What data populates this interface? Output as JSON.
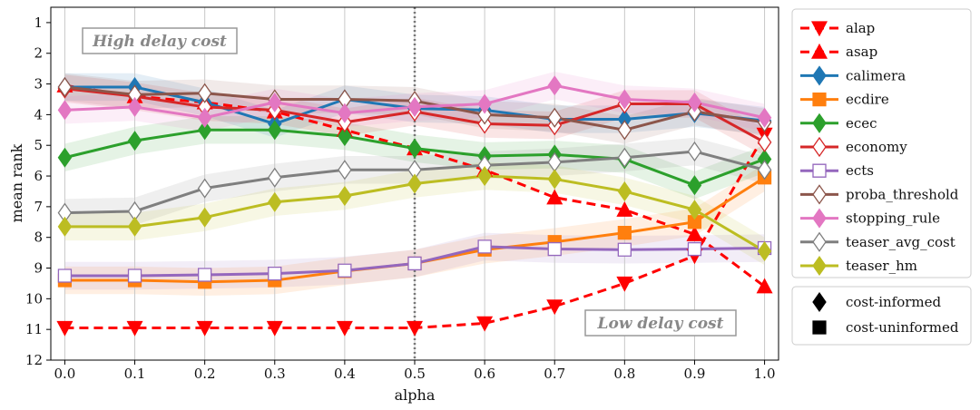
{
  "chart_data": {
    "type": "line",
    "xlabel": "alpha",
    "ylabel": "mean rank",
    "x": [
      0.0,
      0.1,
      0.2,
      0.3,
      0.4,
      0.5,
      0.6,
      0.7,
      0.8,
      0.9,
      1.0
    ],
    "x_ticks": [
      "0.0",
      "0.1",
      "0.2",
      "0.3",
      "0.4",
      "0.5",
      "0.6",
      "0.7",
      "0.8",
      "0.9",
      "1.0"
    ],
    "y_ticks": [
      "1",
      "2",
      "3",
      "4",
      "5",
      "6",
      "7",
      "8",
      "9",
      "10",
      "11",
      "12"
    ],
    "xlim": [
      -0.02,
      1.02
    ],
    "ylim": [
      12,
      0.5
    ],
    "y_inverted": true,
    "grid": "vertical",
    "reference_line_x": 0.5,
    "annotations": [
      {
        "text": "High delay cost",
        "anchor": "top-left"
      },
      {
        "text": "Low delay cost",
        "anchor": "bottom-right"
      }
    ],
    "series": [
      {
        "name": "alap",
        "color": "#ff0000",
        "marker": "triangle-down",
        "dashed": true,
        "band": false,
        "values": [
          10.95,
          10.95,
          10.95,
          10.95,
          10.95,
          10.95,
          10.8,
          10.25,
          9.5,
          8.6,
          4.65
        ]
      },
      {
        "name": "asap",
        "color": "#ff0000",
        "marker": "triangle-up",
        "dashed": true,
        "band": false,
        "values": [
          3.05,
          3.4,
          3.6,
          3.9,
          4.5,
          5.1,
          5.8,
          6.7,
          7.1,
          7.9,
          9.6
        ]
      },
      {
        "name": "calimera",
        "color": "#1f77b4",
        "marker": "diamond-filled",
        "dashed": false,
        "band": true,
        "values": [
          3.1,
          3.1,
          3.6,
          4.3,
          3.5,
          3.8,
          3.85,
          4.15,
          4.15,
          3.95,
          4.2
        ]
      },
      {
        "name": "ecdire",
        "color": "#ff7f0e",
        "marker": "square-filled",
        "dashed": false,
        "band": true,
        "values": [
          9.4,
          9.4,
          9.45,
          9.4,
          9.1,
          8.85,
          8.4,
          8.15,
          7.85,
          7.5,
          6.05
        ]
      },
      {
        "name": "ecec",
        "color": "#2ca02c",
        "marker": "diamond-filled",
        "dashed": false,
        "band": true,
        "values": [
          5.4,
          4.85,
          4.5,
          4.5,
          4.7,
          5.1,
          5.35,
          5.3,
          5.45,
          6.3,
          5.45
        ]
      },
      {
        "name": "economy",
        "color": "#d62728",
        "marker": "diamond-open",
        "dashed": false,
        "band": true,
        "values": [
          3.15,
          3.4,
          3.75,
          3.85,
          4.25,
          3.9,
          4.3,
          4.35,
          3.65,
          3.65,
          4.9
        ]
      },
      {
        "name": "ects",
        "color": "#9467bd",
        "marker": "square-open",
        "dashed": false,
        "band": true,
        "values": [
          9.25,
          9.25,
          9.22,
          9.18,
          9.08,
          8.85,
          8.3,
          8.38,
          8.4,
          8.38,
          8.35
        ]
      },
      {
        "name": "proba_threshold",
        "color": "#8c564b",
        "marker": "diamond-open",
        "dashed": false,
        "band": true,
        "values": [
          3.1,
          3.35,
          3.3,
          3.5,
          3.5,
          3.55,
          4.0,
          4.1,
          4.5,
          3.9,
          4.25
        ]
      },
      {
        "name": "stopping_rule",
        "color": "#e377c2",
        "marker": "diamond-filled",
        "dashed": false,
        "band": true,
        "values": [
          3.85,
          3.75,
          4.1,
          3.6,
          3.95,
          3.75,
          3.65,
          3.05,
          3.5,
          3.6,
          4.1
        ]
      },
      {
        "name": "teaser_avg_cost",
        "color": "#7f7f7f",
        "marker": "diamond-open",
        "dashed": false,
        "band": true,
        "values": [
          7.2,
          7.15,
          6.4,
          6.05,
          5.8,
          5.8,
          5.65,
          5.55,
          5.4,
          5.2,
          5.8
        ]
      },
      {
        "name": "teaser_hm",
        "color": "#bcbd22",
        "marker": "diamond-filled",
        "dashed": false,
        "band": true,
        "values": [
          7.65,
          7.65,
          7.35,
          6.85,
          6.65,
          6.25,
          6.0,
          6.1,
          6.5,
          7.1,
          8.45
        ]
      }
    ],
    "marker_legend": [
      {
        "name": "cost-informed",
        "marker": "diamond-filled"
      },
      {
        "name": "cost-uninformed",
        "marker": "square-filled"
      }
    ]
  }
}
